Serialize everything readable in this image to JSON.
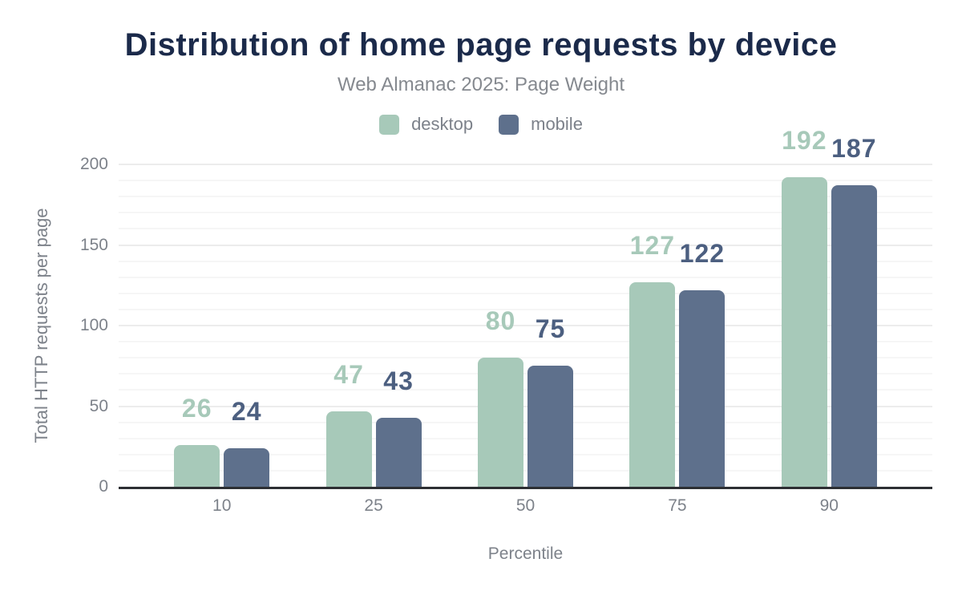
{
  "chart_data": {
    "type": "bar",
    "title": "Distribution of home page requests by device",
    "subtitle": "Web Almanac 2025: Page Weight",
    "xlabel": "Percentile",
    "ylabel": "Total HTTP requests per page",
    "categories": [
      "10",
      "25",
      "50",
      "75",
      "90"
    ],
    "series": [
      {
        "name": "desktop",
        "values": [
          26,
          47,
          80,
          127,
          192
        ],
        "color": "#a7c9b9",
        "label_color": "#a7c9b9"
      },
      {
        "name": "mobile",
        "values": [
          24,
          43,
          75,
          122,
          187
        ],
        "color": "#5e708c",
        "label_color": "#4c5f80"
      }
    ],
    "ylim": [
      0,
      200
    ],
    "yticks": [
      0,
      50,
      100,
      150,
      200
    ],
    "grid": {
      "minor_step": 10,
      "major_step": 50
    },
    "legend_position": "top",
    "colors": {
      "title": "#1b2a4a",
      "subtitle": "#85898f",
      "axis_text": "#7d828a",
      "axis_line": "#2d2f33",
      "grid_minor": "#f6f6f6",
      "grid_major": "#ececec",
      "background": "#ffffff"
    }
  }
}
